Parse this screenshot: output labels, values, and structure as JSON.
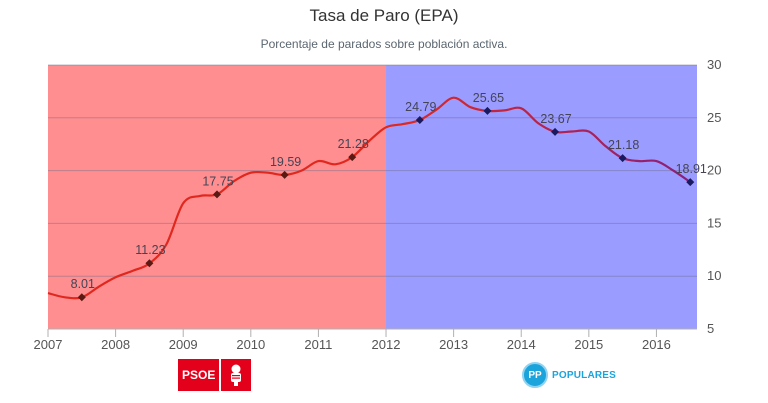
{
  "chart_data": {
    "type": "line",
    "title": "Tasa de Paro (EPA)",
    "subtitle": "Porcentaje de parados sobre población activa.",
    "x_ticks": [
      "2007",
      "2008",
      "2009",
      "2010",
      "2011",
      "2012",
      "2013",
      "2014",
      "2015",
      "2016"
    ],
    "y_ticks": [
      "5",
      "10",
      "15",
      "20",
      "25",
      "30"
    ],
    "xlim": [
      2007,
      2016.6
    ],
    "ylim": [
      5,
      30
    ],
    "y_axis_side": "right",
    "grid": true,
    "bands": [
      {
        "from": 2007,
        "to": 2012,
        "color": "#ff8e90"
      },
      {
        "from": 2012,
        "to": 2016.6,
        "color": "#9b9cff"
      }
    ],
    "series": [
      {
        "color": "#e0281e",
        "colorEnd": "#8a1f7a",
        "x": [
          2007.0,
          2007.25,
          2007.5,
          2007.75,
          2008.0,
          2008.25,
          2008.5,
          2008.75,
          2009.0,
          2009.25,
          2009.5,
          2009.75,
          2010.0,
          2010.25,
          2010.5,
          2010.75,
          2011.0,
          2011.25,
          2011.5,
          2011.75,
          2012.0,
          2012.25,
          2012.5,
          2012.75,
          2013.0,
          2013.25,
          2013.5,
          2013.75,
          2014.0,
          2014.25,
          2014.5,
          2014.75,
          2015.0,
          2015.25,
          2015.5,
          2015.75,
          2016.0,
          2016.25,
          2016.5
        ],
        "y": [
          8.4,
          8.0,
          8.0,
          9.0,
          9.9,
          10.5,
          11.2,
          13.0,
          16.9,
          17.6,
          17.75,
          19.0,
          19.8,
          19.8,
          19.59,
          20.0,
          20.9,
          20.6,
          21.28,
          22.8,
          24.1,
          24.4,
          24.79,
          25.8,
          26.9,
          26.0,
          25.65,
          25.7,
          25.9,
          24.5,
          23.67,
          23.7,
          23.7,
          22.3,
          21.18,
          20.9,
          20.9,
          20.0,
          18.91
        ]
      }
    ],
    "markers": [
      {
        "x": 2007.5,
        "y": 8.01,
        "label": "8.01"
      },
      {
        "x": 2008.5,
        "y": 11.23,
        "label": "11.23"
      },
      {
        "x": 2009.5,
        "y": 17.75,
        "label": "17.75"
      },
      {
        "x": 2010.5,
        "y": 19.59,
        "label": "19.59"
      },
      {
        "x": 2011.5,
        "y": 21.28,
        "label": "21.28"
      },
      {
        "x": 2012.5,
        "y": 24.79,
        "label": "24.79"
      },
      {
        "x": 2013.5,
        "y": 25.65,
        "label": "25.65"
      },
      {
        "x": 2014.5,
        "y": 23.67,
        "label": "23.67"
      },
      {
        "x": 2015.5,
        "y": 21.18,
        "label": "21.18"
      },
      {
        "x": 2016.5,
        "y": 18.91,
        "label": "18.91"
      }
    ]
  },
  "logos": {
    "psoe": {
      "text": "PSOE",
      "color": "#e3001b",
      "icon": "rose-fist-icon"
    },
    "pp": {
      "symbol": "PP",
      "text": "POPULARES",
      "color": "#1ba3dc",
      "icon": "pp-gull-icon"
    }
  }
}
